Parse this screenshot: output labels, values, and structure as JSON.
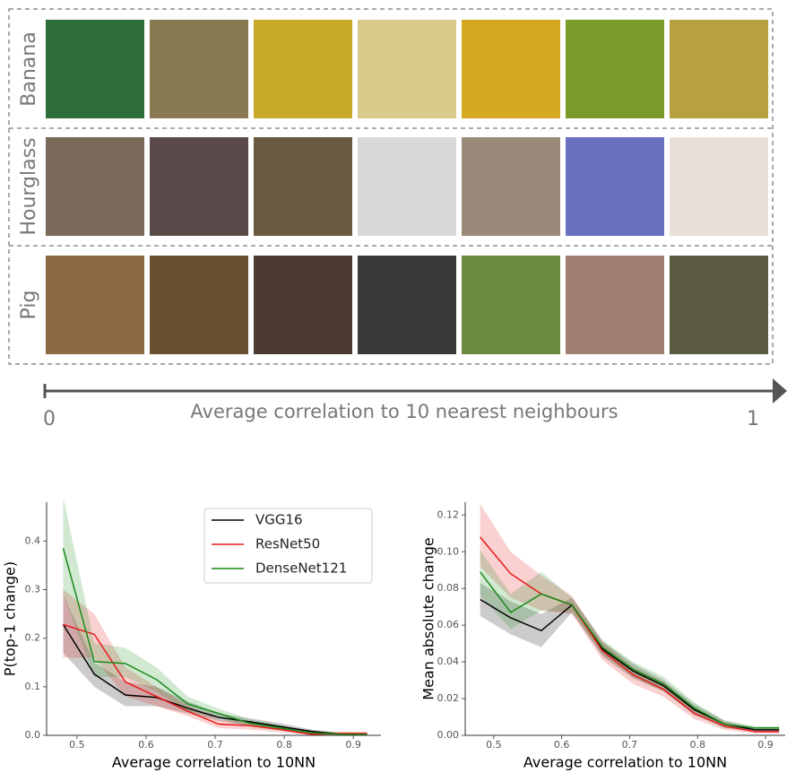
{
  "figure": {
    "rows": [
      "Banana",
      "Hourglass",
      "Pig"
    ],
    "axis_start": "0",
    "axis_end": "1",
    "axis_label": "Average correlation to 10 nearest neighbours"
  },
  "chart_data": [
    {
      "type": "line",
      "xlabel": "Average correlation to 10NN",
      "ylabel": "P(top-1 change)",
      "x": [
        0.48,
        0.525,
        0.57,
        0.615,
        0.66,
        0.705,
        0.75,
        0.795,
        0.84,
        0.885,
        0.92
      ],
      "xlim": [
        0.456,
        0.94
      ],
      "xticks": [
        0.5,
        0.6,
        0.7,
        0.8,
        0.9
      ],
      "ylim": [
        0,
        0.48
      ],
      "yticks": [
        {
          "value": 0,
          "label": "0.0"
        },
        0.1,
        0.2,
        0.3,
        0.4
      ],
      "legend": "upper right",
      "series": [
        {
          "name": "VGG16",
          "color": "#000000",
          "values": [
            0.228,
            0.126,
            0.083,
            0.078,
            0.056,
            0.037,
            0.028,
            0.018,
            0.008,
            0.002,
            0.002
          ],
          "lower": [
            0.17,
            0.1,
            0.06,
            0.06,
            0.045,
            0.03,
            0.02,
            0.01,
            0,
            0,
            0
          ],
          "upper": [
            0.29,
            0.15,
            0.11,
            0.1,
            0.07,
            0.045,
            0.035,
            0.025,
            0.012,
            0.005,
            0.005
          ]
        },
        {
          "name": "ResNet50",
          "color": "#e8191b",
          "values": [
            0.228,
            0.208,
            0.11,
            0.08,
            0.05,
            0.023,
            0.02,
            0.012,
            0.002,
            0.004,
            0.004
          ],
          "lower": [
            0.16,
            0.16,
            0.08,
            0.06,
            0.04,
            0.015,
            0.012,
            0.006,
            0,
            0,
            0
          ],
          "upper": [
            0.3,
            0.25,
            0.14,
            0.1,
            0.062,
            0.032,
            0.028,
            0.018,
            0.006,
            0.008,
            0.008
          ]
        },
        {
          "name": "DenseNet121",
          "color": "#1a8a1a",
          "values": [
            0.385,
            0.152,
            0.148,
            0.115,
            0.065,
            0.045,
            0.025,
            0.015,
            0.005,
            0.002,
            0.002
          ],
          "lower": [
            0.29,
            0.12,
            0.12,
            0.09,
            0.05,
            0.035,
            0.018,
            0.01,
            0.002,
            0,
            0
          ],
          "upper": [
            0.49,
            0.19,
            0.18,
            0.14,
            0.08,
            0.055,
            0.033,
            0.02,
            0.008,
            0.004,
            0.004
          ]
        }
      ]
    },
    {
      "type": "line",
      "xlabel": "Average correlation to 10NN",
      "ylabel": "Mean absolute change",
      "x": [
        0.48,
        0.525,
        0.57,
        0.615,
        0.66,
        0.705,
        0.75,
        0.795,
        0.84,
        0.885,
        0.92
      ],
      "xlim": [
        0.458,
        0.929
      ],
      "xticks": [
        0.5,
        0.6,
        0.7,
        0.8,
        0.9
      ],
      "ylim": [
        0,
        0.127
      ],
      "yticks": [
        {
          "value": 0,
          "label": "0.00"
        },
        0.02,
        0.04,
        0.06,
        0.08,
        {
          "value": 0.1,
          "label": "0.10"
        },
        0.12
      ],
      "series": [
        {
          "color": "#000000",
          "values": [
            0.074,
            0.064,
            0.057,
            0.071,
            0.047,
            0.035,
            0.027,
            0.014,
            0.006,
            0.003,
            0.003
          ],
          "lower": [
            0.065,
            0.055,
            0.048,
            0.067,
            0.043,
            0.031,
            0.024,
            0.011,
            0.004,
            0.002,
            0.002
          ],
          "upper": [
            0.083,
            0.073,
            0.066,
            0.075,
            0.051,
            0.039,
            0.03,
            0.017,
            0.008,
            0.004,
            0.004
          ]
        },
        {
          "color": "#e8191b",
          "values": [
            0.108,
            0.088,
            0.077,
            0.071,
            0.046,
            0.033,
            0.025,
            0.012,
            0.005,
            0.002,
            0.002
          ],
          "lower": [
            0.092,
            0.075,
            0.068,
            0.066,
            0.041,
            0.028,
            0.021,
            0.009,
            0.003,
            0.001,
            0.001
          ],
          "upper": [
            0.126,
            0.1,
            0.087,
            0.076,
            0.051,
            0.037,
            0.029,
            0.015,
            0.007,
            0.003,
            0.003
          ]
        },
        {
          "color": "#1a8a1a",
          "values": [
            0.089,
            0.067,
            0.077,
            0.071,
            0.048,
            0.036,
            0.028,
            0.015,
            0.006,
            0.004,
            0.004
          ],
          "lower": [
            0.076,
            0.058,
            0.068,
            0.067,
            0.044,
            0.032,
            0.024,
            0.012,
            0.004,
            0.003,
            0.003
          ],
          "upper": [
            0.101,
            0.077,
            0.089,
            0.075,
            0.052,
            0.04,
            0.032,
            0.018,
            0.008,
            0.005,
            0.005
          ]
        }
      ]
    }
  ]
}
